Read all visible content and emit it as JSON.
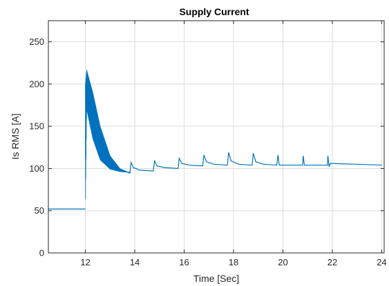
{
  "chart_data": {
    "type": "line",
    "title": "Supply Current",
    "xlabel": "Time [Sec]",
    "ylabel": "Is RMS [A]",
    "xlim": [
      10.5,
      24.1
    ],
    "ylim": [
      0,
      275
    ],
    "x_ticks": [
      12,
      14,
      16,
      18,
      20,
      22,
      24
    ],
    "x_tick_labels": [
      "12",
      "14",
      "16",
      "18",
      "20",
      "22",
      "24"
    ],
    "y_ticks": [
      0,
      50,
      100,
      150,
      200,
      250
    ],
    "y_tick_labels": [
      "0",
      "50",
      "100",
      "150",
      "200",
      "250"
    ],
    "grid": true,
    "legend": "none",
    "colors": {
      "series": "#0072bd",
      "grid": "#dcdcdc",
      "axes": "#262626"
    },
    "series": [
      {
        "name": "",
        "baseline": {
          "x_start": 10.5,
          "x_end": 12.0,
          "value": 52
        },
        "oscillation": {
          "x_start": 12.0,
          "x_end": 13.8,
          "upper_envelope": {
            "x": [
              12.0,
              12.05,
              12.3,
              12.6,
              13.0,
              13.4,
              13.8
            ],
            "y": [
              200,
              217,
              190,
              150,
              115,
              100,
              95
            ]
          },
          "lower_envelope": {
            "x": [
              12.0,
              12.05,
              12.3,
              12.6,
              13.0,
              13.4,
              13.8
            ],
            "y": [
              52,
              170,
              135,
              110,
              99,
              96,
              95
            ]
          }
        },
        "points": [
          [
            13.8,
            94
          ],
          [
            13.85,
            107
          ],
          [
            13.95,
            101
          ],
          [
            14.2,
            98
          ],
          [
            14.75,
            97
          ],
          [
            14.8,
            109
          ],
          [
            14.9,
            103
          ],
          [
            15.2,
            101
          ],
          [
            15.75,
            100
          ],
          [
            15.8,
            112
          ],
          [
            15.9,
            106
          ],
          [
            16.2,
            104
          ],
          [
            16.75,
            103
          ],
          [
            16.8,
            116
          ],
          [
            16.9,
            108
          ],
          [
            17.2,
            105
          ],
          [
            17.75,
            104
          ],
          [
            17.8,
            119
          ],
          [
            17.9,
            109
          ],
          [
            18.2,
            105
          ],
          [
            18.75,
            104
          ],
          [
            18.8,
            118
          ],
          [
            18.9,
            108
          ],
          [
            19.2,
            105
          ],
          [
            19.75,
            104
          ],
          [
            19.8,
            116
          ],
          [
            19.85,
            104
          ],
          [
            20.8,
            104
          ],
          [
            20.82,
            115
          ],
          [
            20.87,
            104
          ],
          [
            21.8,
            104
          ],
          [
            21.82,
            115
          ],
          [
            21.87,
            102
          ],
          [
            21.92,
            106
          ],
          [
            24.0,
            104
          ]
        ]
      }
    ]
  }
}
